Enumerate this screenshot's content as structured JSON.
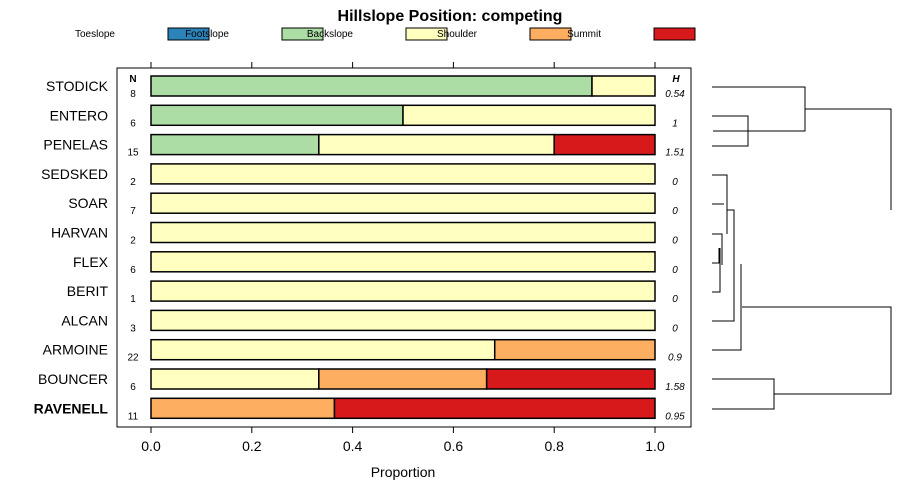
{
  "chart_data": {
    "type": "bar",
    "stacked": true,
    "orientation": "horizontal",
    "title": "Hillslope Position: competing",
    "xlabel": "Proportion",
    "xlim": [
      0,
      1
    ],
    "xticks": [
      "0.0",
      "0.2",
      "0.4",
      "0.6",
      "0.8",
      "1.0"
    ],
    "legend_position": "top",
    "legend": [
      {
        "name": "Toeslope",
        "color": "#2b83ba"
      },
      {
        "name": "Footslope",
        "color": "#abdda4"
      },
      {
        "name": "Backslope",
        "color": "#ffffbf"
      },
      {
        "name": "Shoulder",
        "color": "#fdae61"
      },
      {
        "name": "Summit",
        "color": "#d7191c"
      }
    ],
    "n_header": "N",
    "h_header": "H",
    "categories": [
      {
        "name": "STODICK",
        "n": "8",
        "h": "0.54",
        "values": [
          0,
          0.875,
          0.125,
          0,
          0
        ],
        "bold": false
      },
      {
        "name": "ENTERO",
        "n": "6",
        "h": "1",
        "values": [
          0,
          0.5,
          0.5,
          0,
          0
        ],
        "bold": false
      },
      {
        "name": "PENELAS",
        "n": "15",
        "h": "1.51",
        "values": [
          0,
          0.333,
          0.467,
          0,
          0.2
        ],
        "bold": false
      },
      {
        "name": "SEDSKED",
        "n": "2",
        "h": "0",
        "values": [
          0,
          0,
          1,
          0,
          0
        ],
        "bold": false
      },
      {
        "name": "SOAR",
        "n": "7",
        "h": "0",
        "values": [
          0,
          0,
          1,
          0,
          0
        ],
        "bold": false
      },
      {
        "name": "HARVAN",
        "n": "2",
        "h": "0",
        "values": [
          0,
          0,
          1,
          0,
          0
        ],
        "bold": false
      },
      {
        "name": "FLEX",
        "n": "6",
        "h": "0",
        "values": [
          0,
          0,
          1,
          0,
          0
        ],
        "bold": false
      },
      {
        "name": "BERIT",
        "n": "1",
        "h": "0",
        "values": [
          0,
          0,
          1,
          0,
          0
        ],
        "bold": false
      },
      {
        "name": "ALCAN",
        "n": "3",
        "h": "0",
        "values": [
          0,
          0,
          1,
          0,
          0
        ],
        "bold": false
      },
      {
        "name": "ARMOINE",
        "n": "22",
        "h": "0.9",
        "values": [
          0,
          0,
          0.682,
          0.318,
          0
        ],
        "bold": false
      },
      {
        "name": "BOUNCER",
        "n": "6",
        "h": "1.58",
        "values": [
          0,
          0,
          0.333,
          0.333,
          0.334
        ],
        "bold": false
      },
      {
        "name": "RAVENELL",
        "n": "11",
        "h": "0.95",
        "values": [
          0,
          0,
          0,
          0.364,
          0.636
        ],
        "bold": true
      }
    ]
  }
}
